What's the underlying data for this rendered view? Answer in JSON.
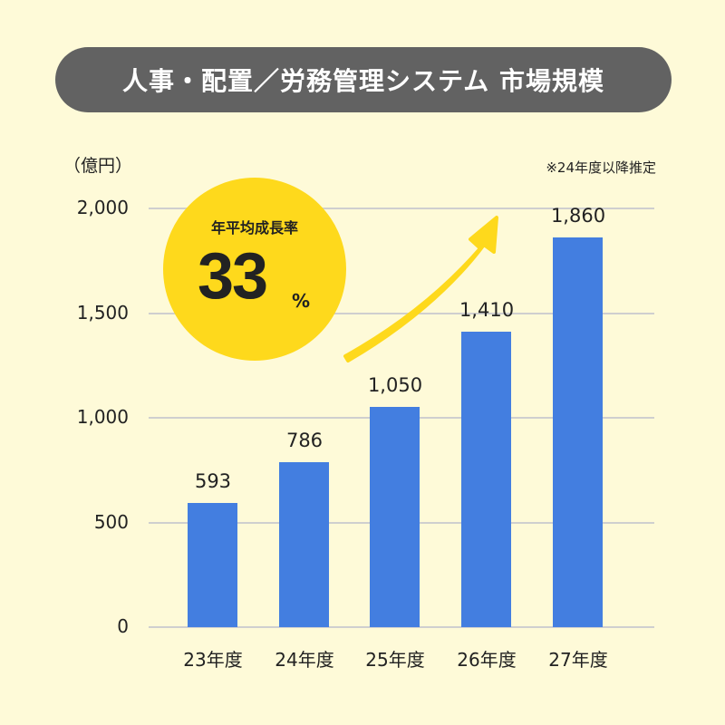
{
  "title": "人事・配置／労務管理システム 市場規模",
  "unit_label": "（億円）",
  "note": "※24年度以降推定",
  "callout": {
    "label": "年平均成長率",
    "value": "33",
    "unit": "%",
    "color": "#fed91c"
  },
  "colors": {
    "bar": "#437ee0",
    "background": "#fefad8",
    "title_bg": "#626262",
    "grid": "#cfcfcf"
  },
  "y_ticks": [
    "2,000",
    "1,500",
    "1,000",
    "500",
    "0"
  ],
  "bars": [
    {
      "category": "23年度",
      "value": 593,
      "label": "593"
    },
    {
      "category": "24年度",
      "value": 786,
      "label": "786"
    },
    {
      "category": "25年度",
      "value": 1050,
      "label": "1,050"
    },
    {
      "category": "26年度",
      "value": 1410,
      "label": "1,410"
    },
    {
      "category": "27年度",
      "value": 1860,
      "label": "1,860"
    }
  ],
  "chart_data": {
    "type": "bar",
    "title": "人事・配置／労務管理システム 市場規模",
    "categories": [
      "23年度",
      "24年度",
      "25年度",
      "26年度",
      "27年度"
    ],
    "values": [
      593,
      786,
      1050,
      1410,
      1860
    ],
    "xlabel": "",
    "ylabel": "（億円）",
    "ylim": [
      0,
      2000
    ],
    "yticks": [
      0,
      500,
      1000,
      1500,
      2000
    ],
    "grid": true,
    "legend": null,
    "annotations": [
      "年平均成長率 33%",
      "※24年度以降推定"
    ]
  }
}
